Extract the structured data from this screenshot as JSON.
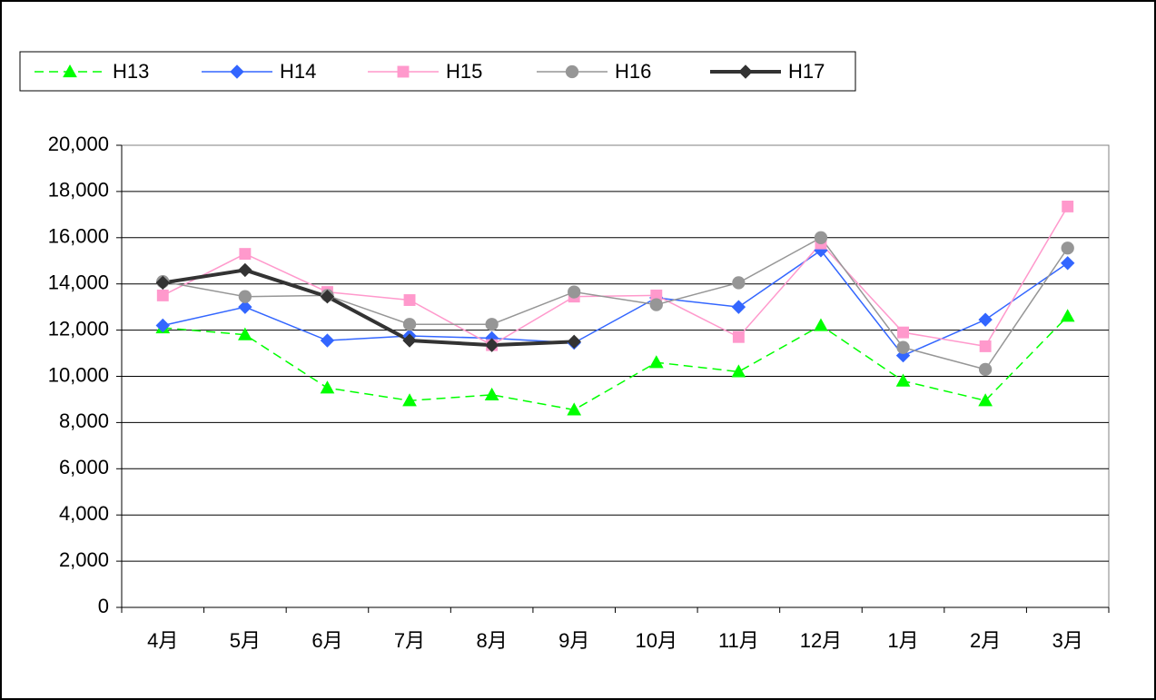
{
  "chart_data": {
    "type": "line",
    "categories": [
      "4月",
      "5月",
      "6月",
      "7月",
      "8月",
      "9月",
      "10月",
      "11月",
      "12月",
      "1月",
      "2月",
      "3月"
    ],
    "series": [
      {
        "name": "H13",
        "color": "#00ff00",
        "marker": "triangle",
        "dashed": true,
        "width": 1.5,
        "values": [
          12100,
          11800,
          9500,
          8950,
          9200,
          8550,
          10600,
          10200,
          12200,
          9800,
          8950,
          12600
        ]
      },
      {
        "name": "H14",
        "color": "#3366ff",
        "marker": "diamond",
        "dashed": false,
        "width": 1.5,
        "values": [
          12200,
          13000,
          11550,
          11750,
          11650,
          11450,
          13400,
          13000,
          15450,
          10900,
          12450,
          14900
        ]
      },
      {
        "name": "H15",
        "color": "#ff99cc",
        "marker": "square",
        "dashed": false,
        "width": 1.5,
        "values": [
          13500,
          15300,
          13650,
          13300,
          11350,
          13450,
          13500,
          11700,
          15750,
          11900,
          11300,
          17350
        ]
      },
      {
        "name": "H16",
        "color": "#969696",
        "marker": "circle",
        "dashed": false,
        "width": 1.5,
        "values": [
          14100,
          13450,
          13500,
          12250,
          12250,
          13650,
          13100,
          14050,
          16000,
          11250,
          10300,
          15550
        ]
      },
      {
        "name": "H17",
        "color": "#333333",
        "marker": "diamond",
        "dashed": false,
        "width": 4,
        "values": [
          14050,
          14600,
          13450,
          11550,
          11350,
          11500,
          null,
          null,
          null,
          null,
          null,
          null
        ]
      }
    ],
    "ylim": [
      0,
      20000
    ],
    "yticks": [
      0,
      {
        "value": 2000,
        "label": "2,000"
      },
      {
        "value": 4000,
        "label": "4,000"
      },
      {
        "value": 6000,
        "label": "6,000"
      },
      {
        "value": 8000,
        "label": "8,000"
      },
      {
        "value": 10000,
        "label": "10,000"
      },
      {
        "value": 12000,
        "label": "12,000"
      },
      {
        "value": 14000,
        "label": "14,000"
      },
      {
        "value": 16000,
        "label": "16,000"
      },
      {
        "value": 18000,
        "label": "18,000"
      },
      {
        "value": 20000,
        "label": "20,000"
      }
    ],
    "grid": true,
    "legend": "top"
  }
}
